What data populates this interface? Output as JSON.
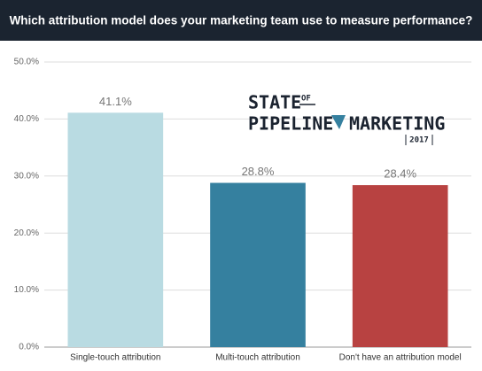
{
  "chart_data": {
    "type": "bar",
    "title": "Which attribution model does your marketing team use to measure performance?",
    "categories": [
      "Single-touch attribution",
      "Multi-touch attribution",
      "Don't have an attribution model"
    ],
    "values": [
      41.1,
      28.8,
      28.4
    ],
    "value_labels": [
      "41.1%",
      "28.8%",
      "28.4%"
    ],
    "colors": [
      "#b9dbe2",
      "#35809f",
      "#b84241"
    ],
    "ylim": [
      0,
      50
    ],
    "yticks": [
      {
        "value": 0,
        "label": "0.0%"
      },
      {
        "value": 10,
        "label": "10.0%"
      },
      {
        "value": 20,
        "label": "20.0%"
      },
      {
        "value": 30,
        "label": "30.0%"
      },
      {
        "value": 40,
        "label": "40.0%"
      },
      {
        "value": 50,
        "label": "50.0%"
      }
    ],
    "grid": true,
    "logo": {
      "state": "STATE",
      "of": "OF",
      "pipeline": "PIPELINE",
      "marketing": "MARKETING",
      "year": "2017"
    }
  }
}
